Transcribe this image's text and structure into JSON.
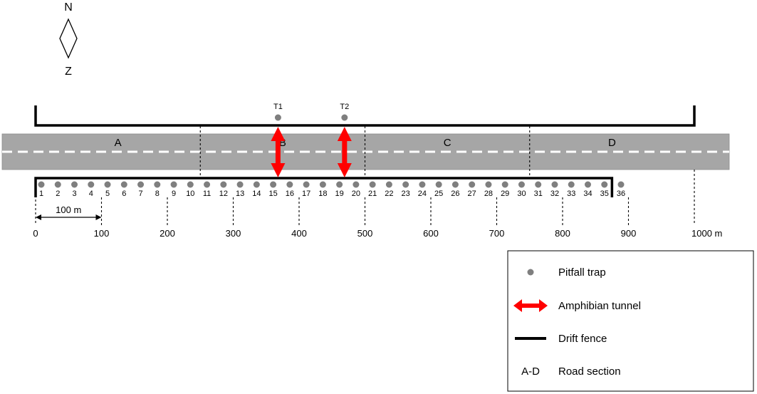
{
  "compass": {
    "north": "N",
    "south": "Z"
  },
  "sections": [
    {
      "label": "A",
      "from": 0,
      "to": 250
    },
    {
      "label": "B",
      "from": 250,
      "to": 500
    },
    {
      "label": "C",
      "from": 500,
      "to": 750
    },
    {
      "label": "D",
      "from": 750,
      "to": 1000
    }
  ],
  "north_fence": {
    "from": 0,
    "to": 1000
  },
  "south_fence": {
    "from": 0,
    "to": 875
  },
  "tunnels": [
    {
      "label": "T1",
      "position": 368
    },
    {
      "label": "T2",
      "position": 469
    }
  ],
  "traps": [
    "1",
    "2",
    "3",
    "4",
    "5",
    "6",
    "7",
    "8",
    "9",
    "10",
    "11",
    "12",
    "13",
    "14",
    "15",
    "16",
    "17",
    "18",
    "19",
    "20",
    "21",
    "22",
    "23",
    "24",
    "25",
    "26",
    "27",
    "28",
    "29",
    "30",
    "31",
    "32",
    "33",
    "34",
    "35",
    "36"
  ],
  "axis": {
    "ticks": [
      0,
      100,
      200,
      300,
      400,
      500,
      600,
      700,
      800,
      900,
      1000
    ],
    "unit_label": "1000 m"
  },
  "scale_bar": {
    "label": "100 m",
    "length": 100
  },
  "legend": {
    "items": [
      {
        "symbol": "dot",
        "label": "Pitfall trap"
      },
      {
        "symbol": "arrow",
        "label": "Amphibian tunnel"
      },
      {
        "symbol": "line",
        "label": "Drift fence"
      },
      {
        "symbol": "text",
        "symbol_text": "A-D",
        "label": "Road section"
      }
    ]
  },
  "colors": {
    "road": "#a6a6a6",
    "road_edge": "#8c8c8c",
    "trap": "#7f7f7f",
    "tunnel": "#ff0000",
    "fence": "#000000"
  }
}
